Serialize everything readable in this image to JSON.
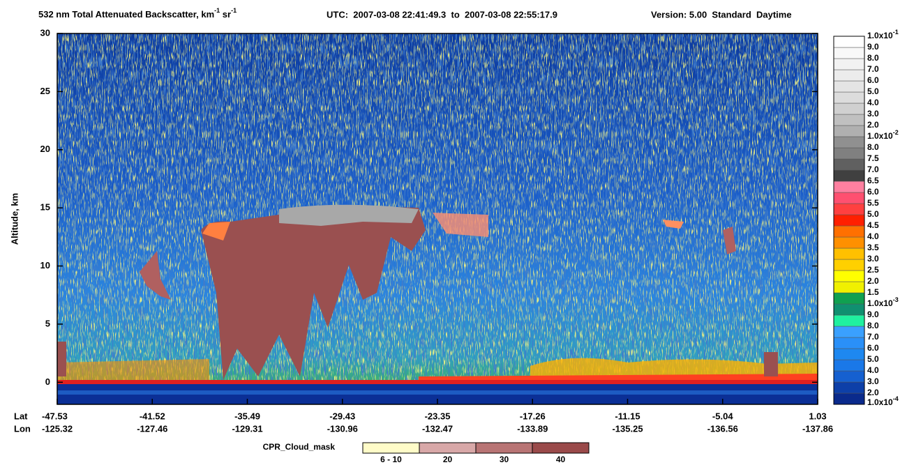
{
  "chart_data": {
    "type": "curtain",
    "title": {
      "text": "532 nm Total Attenuated Backscatter, km",
      "exp1": "-1",
      "unit2": " sr",
      "exp2": "-1"
    },
    "utc_range": "UTC:  2007-03-08 22:41:49.3  to  2007-03-08 22:55:17.9",
    "version": "Version: 5.00  Standard  Daytime",
    "ylabel": "Altitude, km",
    "ylim": [
      -1.9,
      30
    ],
    "yticks": [
      0,
      5,
      10,
      15,
      20,
      25,
      30
    ],
    "lat_label": "Lat",
    "lon_label": "Lon",
    "lat": [
      "-47.53",
      "-41.52",
      "-35.49",
      "-29.43",
      "-23.35",
      "-17.26",
      "-11.15",
      "-5.04",
      "1.03"
    ],
    "lon": [
      "-125.32",
      "-127.46",
      "-129.31",
      "-130.96",
      "-132.47",
      "-133.89",
      "-135.25",
      "-136.56",
      "-137.86"
    ],
    "colorbar": {
      "labels": [
        {
          "base": "1.0x10",
          "exp": "-4"
        },
        {
          "base": "2.0"
        },
        {
          "base": "3.0"
        },
        {
          "base": "4.0"
        },
        {
          "base": "5.0"
        },
        {
          "base": "6.0"
        },
        {
          "base": "7.0"
        },
        {
          "base": "8.0"
        },
        {
          "base": "9.0"
        },
        {
          "base": "1.0x10",
          "exp": "-3"
        },
        {
          "base": "1.5"
        },
        {
          "base": "2.0"
        },
        {
          "base": "2.5"
        },
        {
          "base": "3.0"
        },
        {
          "base": "3.5"
        },
        {
          "base": "4.0"
        },
        {
          "base": "4.5"
        },
        {
          "base": "5.0"
        },
        {
          "base": "5.5"
        },
        {
          "base": "6.0"
        },
        {
          "base": "6.5"
        },
        {
          "base": "7.0"
        },
        {
          "base": "7.5"
        },
        {
          "base": "8.0"
        },
        {
          "base": "1.0x10",
          "exp": "-2"
        },
        {
          "base": "2.0"
        },
        {
          "base": "3.0"
        },
        {
          "base": "4.0"
        },
        {
          "base": "5.0"
        },
        {
          "base": "6.0"
        },
        {
          "base": "7.0"
        },
        {
          "base": "8.0"
        },
        {
          "base": "9.0"
        },
        {
          "base": "1.0x10",
          "exp": "-1"
        }
      ],
      "colors": [
        "#0a2a8c",
        "#0d3fa8",
        "#1560d0",
        "#1a78e8",
        "#1e88f0",
        "#2a90f8",
        "#3aa0ff",
        "#20f0a0",
        "#109070",
        "#10a050",
        "#f0f000",
        "#ffff00",
        "#ffd000",
        "#ffc000",
        "#ff9000",
        "#ff7000",
        "#ff2000",
        "#ff4040",
        "#ff5070",
        "#ff80a0",
        "#404040",
        "#606060",
        "#808080",
        "#909090",
        "#b0b0b0",
        "#c0c0c0",
        "#d0d0d0",
        "#dcdcdc",
        "#e4e4e4",
        "#ececec",
        "#f2f2f2",
        "#f8f8f8",
        "#ffffff"
      ]
    },
    "cloud_mask": {
      "title": "CPR_Cloud_mask",
      "labels": [
        "6 - 10",
        "20",
        "30",
        "40"
      ],
      "colors": [
        "#fffcc8",
        "#d8a8a8",
        "#b87474",
        "#9a4a4a"
      ]
    }
  }
}
